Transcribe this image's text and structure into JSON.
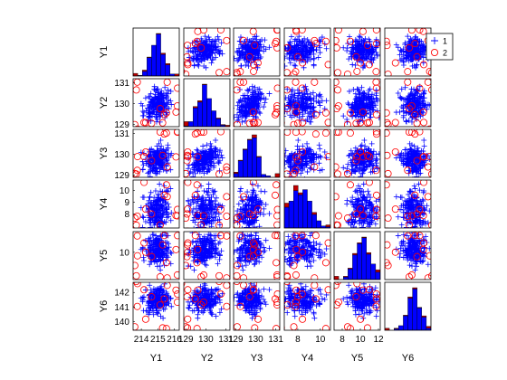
{
  "chart_data": {
    "type": "scatter",
    "subtype": "scatter-matrix (gplotmatrix) with diagonal histograms",
    "variables": [
      "Y1",
      "Y2",
      "Y3",
      "Y4",
      "Y5",
      "Y6"
    ],
    "ranges": [
      [
        213.5,
        216.3
      ],
      [
        128.9,
        131.2
      ],
      [
        128.9,
        131.2
      ],
      [
        6.8,
        10.9
      ],
      [
        7.1,
        12.2
      ],
      [
        139.4,
        142.7
      ]
    ],
    "ticks": [
      [
        214,
        215,
        216
      ],
      [
        129,
        130,
        131
      ],
      [
        129,
        130,
        131
      ],
      [
        8,
        10
      ],
      [
        8,
        10,
        12
      ],
      []
    ],
    "y_ticks": [
      [],
      [
        129,
        130,
        131
      ],
      [
        129,
        130,
        131
      ],
      [
        8,
        9,
        10
      ],
      [
        10
      ],
      [
        140,
        141,
        142
      ]
    ],
    "x_tick_labels": [
      [
        "214",
        "215",
        "216"
      ],
      [
        "129",
        "130",
        "131"
      ],
      [
        "129",
        "130",
        "131"
      ],
      [
        "8",
        "10"
      ],
      [
        "8",
        "10",
        "12"
      ],
      []
    ],
    "y_tick_labels": [
      [],
      [
        "129",
        "130",
        "131"
      ],
      [
        "129",
        "130",
        "131"
      ],
      [
        "8",
        "9",
        "10"
      ],
      [
        "10"
      ],
      [
        "140",
        "141",
        "142"
      ]
    ],
    "series": [
      {
        "name": "1",
        "marker": "+",
        "color": "#0000ff",
        "count": 200
      },
      {
        "name": "2",
        "marker": "o",
        "color": "#ff0000",
        "count": 15
      }
    ],
    "diagonal": "histogram",
    "histogram_colors": {
      "group1": "#0000ff",
      "group2": "#c00000"
    },
    "legend": {
      "entries": [
        "1",
        "2"
      ],
      "placement": "top-right (in Y1 vs Y6 panel)"
    },
    "grid": false
  }
}
